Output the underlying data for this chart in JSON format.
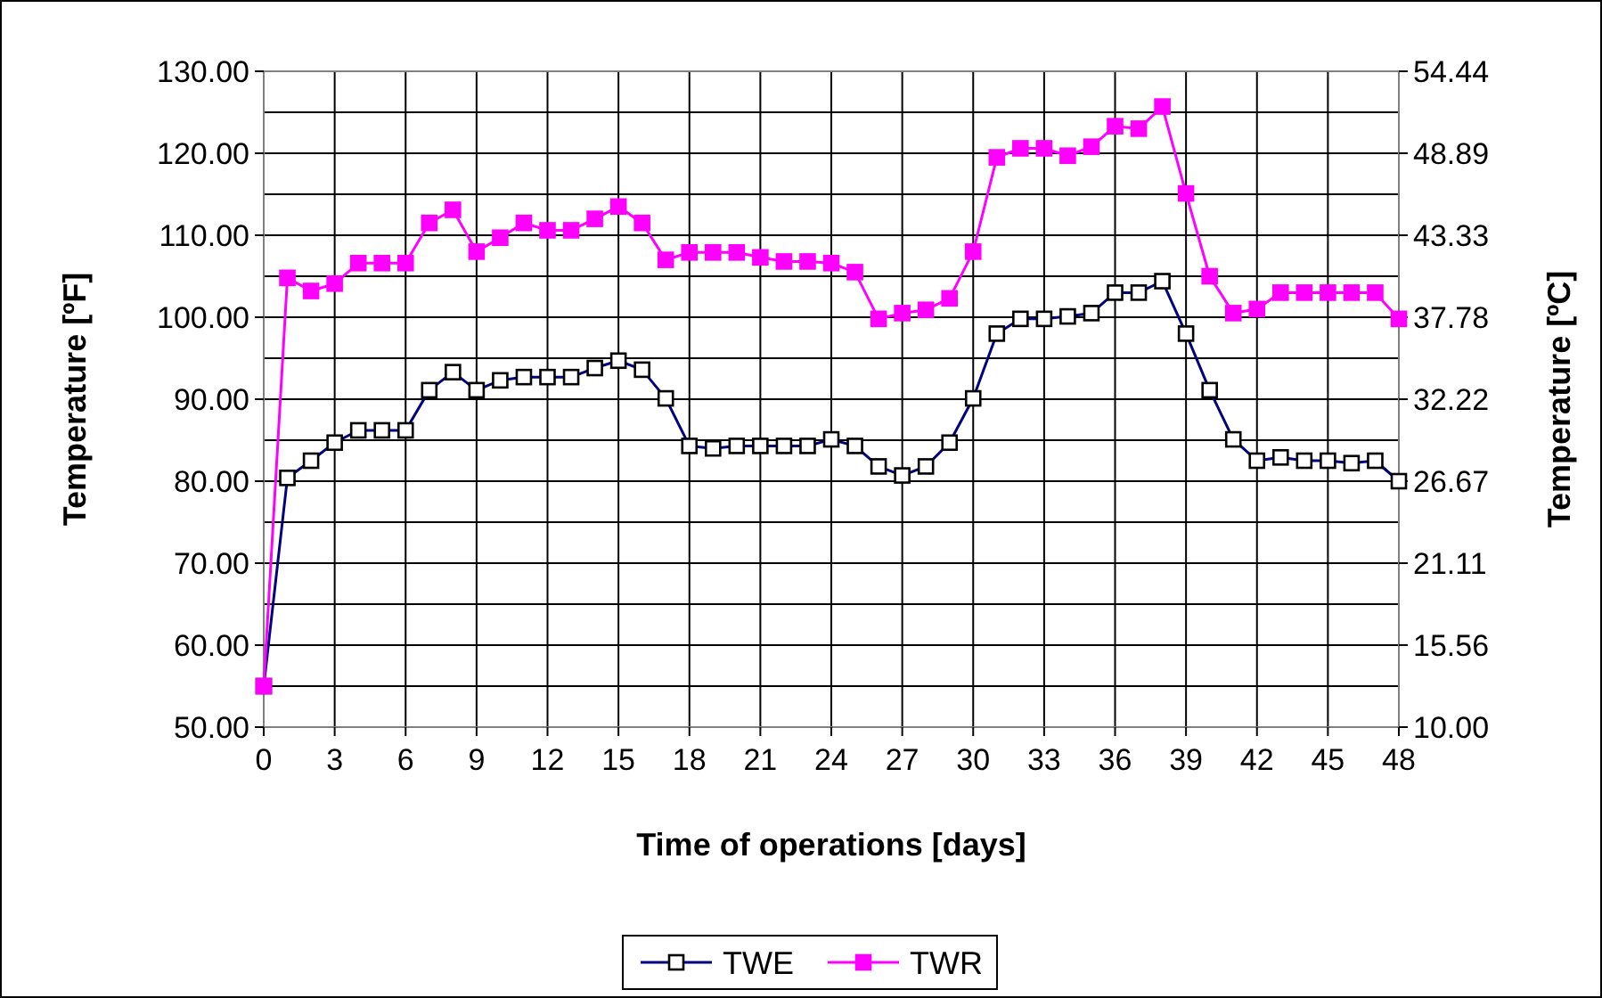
{
  "chart_data": {
    "type": "line",
    "xlabel": "Time of operations [days]",
    "ylabel": "Temperature [ºF]",
    "y2label": "Temperature [ºC]",
    "x": [
      0,
      1,
      2,
      3,
      4,
      5,
      6,
      7,
      8,
      9,
      10,
      11,
      12,
      13,
      14,
      15,
      16,
      17,
      18,
      19,
      20,
      21,
      22,
      23,
      24,
      25,
      26,
      27,
      28,
      29,
      30,
      31,
      32,
      33,
      34,
      35,
      36,
      37,
      38,
      39,
      40,
      41,
      42,
      43,
      44,
      45,
      46,
      47,
      48
    ],
    "series": [
      {
        "name": "TWE",
        "color": "#000080",
        "values": [
          55,
          80.4,
          82.5,
          84.7,
          86.2,
          86.2,
          86.2,
          91.1,
          93.3,
          91.1,
          92.3,
          92.7,
          92.7,
          92.7,
          93.8,
          94.7,
          93.6,
          90.1,
          84.3,
          84.0,
          84.3,
          84.3,
          84.3,
          84.3,
          85.1,
          84.3,
          81.8,
          80.7,
          81.8,
          84.7,
          90.1,
          98.0,
          99.8,
          99.8,
          100.1,
          100.5,
          103.0,
          103.0,
          104.4,
          98.0,
          91.1,
          85.1,
          82.5,
          82.9,
          82.5,
          82.5,
          82.2,
          82.5,
          80.0
        ]
      },
      {
        "name": "TWR",
        "color": "#ff00ff",
        "values": [
          55,
          104.8,
          103.2,
          104.1,
          106.6,
          106.6,
          106.6,
          111.5,
          113.1,
          108.0,
          109.7,
          111.5,
          110.6,
          110.6,
          112.0,
          113.5,
          111.5,
          107.0,
          107.9,
          107.9,
          107.9,
          107.3,
          106.8,
          106.8,
          106.6,
          105.5,
          99.8,
          100.5,
          100.9,
          102.3,
          108.0,
          119.5,
          120.6,
          120.6,
          119.7,
          120.8,
          123.3,
          123.0,
          125.7,
          115.1,
          105.0,
          100.5,
          101.0,
          103.0,
          103.0,
          103.0,
          103.0,
          103.0,
          99.8
        ]
      }
    ],
    "xlim": [
      0,
      48
    ],
    "xticks": [
      0,
      3,
      6,
      9,
      12,
      15,
      18,
      21,
      24,
      27,
      30,
      33,
      36,
      39,
      42,
      45,
      48
    ],
    "ylim": [
      50,
      130
    ],
    "yticks": [
      {
        "value": 50,
        "label": "50.00"
      },
      {
        "value": 55,
        "label": null
      },
      {
        "value": 60,
        "label": "60.00"
      },
      {
        "value": 65,
        "label": null
      },
      {
        "value": 70,
        "label": "70.00"
      },
      {
        "value": 75,
        "label": null
      },
      {
        "value": 80,
        "label": "80.00"
      },
      {
        "value": 85,
        "label": null
      },
      {
        "value": 90,
        "label": "90.00"
      },
      {
        "value": 95,
        "label": null
      },
      {
        "value": 100,
        "label": "100.00"
      },
      {
        "value": 105,
        "label": null
      },
      {
        "value": 110,
        "label": "110.00"
      },
      {
        "value": 115,
        "label": null
      },
      {
        "value": 120,
        "label": "120.00"
      },
      {
        "value": 125,
        "label": null
      },
      {
        "value": 130,
        "label": "130.00"
      }
    ],
    "y2lim": [
      10,
      54.44
    ],
    "y2ticks": [
      {
        "value": 10,
        "label": "10.00"
      },
      {
        "value": 15.56,
        "label": "15.56"
      },
      {
        "value": 21.11,
        "label": "21.11"
      },
      {
        "value": 26.67,
        "label": "26.67"
      },
      {
        "value": 32.22,
        "label": "32.22"
      },
      {
        "value": 37.78,
        "label": "37.78"
      },
      {
        "value": 43.33,
        "label": "43.33"
      },
      {
        "value": 48.89,
        "label": "48.89"
      },
      {
        "value": 54.44,
        "label": "54.44"
      }
    ],
    "grid": true,
    "legend": "bottom",
    "marker": "square",
    "line_style": "solid"
  }
}
